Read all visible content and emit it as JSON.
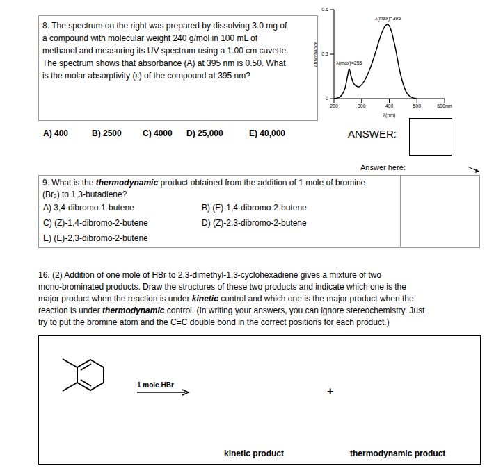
{
  "q8": {
    "lines": [
      "8. The spectrum on the right was prepared by dissolving 3.0 mg of",
      "a compound with molecular weight 240 g/mol in 100 mL of",
      "methanol and measuring its UV spectrum using a 1.00 cm cuvette.",
      "The spectrum shows that absorbance (A) at 395 nm is 0.50. What",
      "is the molar absorptivity (ε) of the compound at 395 nm?"
    ],
    "options": [
      "A) 400",
      "B) 2500",
      "C) 4000",
      "D) 25,000",
      "E) 40,000"
    ],
    "answer_label": "ANSWER:"
  },
  "chart_data": {
    "type": "line",
    "x": [
      200,
      220,
      240,
      250,
      255,
      262,
      272,
      290,
      310,
      330,
      350,
      370,
      385,
      395,
      405,
      420,
      440,
      460,
      480,
      500
    ],
    "values": [
      0.0,
      0.01,
      0.07,
      0.16,
      0.2,
      0.15,
      0.1,
      0.08,
      0.12,
      0.2,
      0.31,
      0.43,
      0.49,
      0.5,
      0.47,
      0.36,
      0.17,
      0.05,
      0.01,
      0.0
    ],
    "color": "#000000",
    "xlim": [
      200,
      600
    ],
    "xticks": [
      200,
      300,
      400,
      500,
      {
        "value": 600,
        "label": "600nm"
      }
    ],
    "ylim": [
      0,
      0.6
    ],
    "yticks": [
      0,
      0.3,
      0.6
    ],
    "x_label": "λ(nm)",
    "y_label": "absorbance",
    "annotations": [
      {
        "text": "λ(max)=395",
        "x": 395,
        "y": 0.5
      },
      {
        "text": "λ(max)=255",
        "x": 255,
        "y": 0.2
      }
    ],
    "grid": false
  },
  "answer_here": "Answer here:",
  "q9": {
    "lines": [
      [
        "9. What is the ",
        {
          "text": "thermodynamic",
          "bold": true
        },
        " product obtained from the addition of 1 mole of bromine"
      ],
      "(Br₂) to 1,3-butadiene?"
    ],
    "options": [
      "A) 3,4-dibromo-1-butene",
      "B) (E)-1,4-dibromo-2-butene",
      "C) (Z)-1,4-dibromo-2-butene",
      "D) (Z)-2,3-dibromo-2-butene",
      "E) (E)-2,3-dibromo-2-butene"
    ]
  },
  "q16": {
    "lines": [
      "16. (2) Addition of one mole of HBr to 2,3-dimethyl-1,3-cyclohexadiene gives a mixture of two",
      "mono-brominated products. Draw the structures of these two products and indicate which one is the",
      [
        "major product when the reaction is under ",
        {
          "text": "kinetic",
          "bold": true
        },
        " control and which one is the major product when the"
      ],
      [
        "reaction is under ",
        {
          "text": "thermodynamic",
          "bold": true
        },
        " control. (In writing your answers, you can ignore stereochemistry. Just"
      ],
      "try to put the bromine atom and the C=C double bond in the correct positions for each product.)"
    ],
    "reagent": "1 mole HBr",
    "plus": "+",
    "kinetic_label": "kinetic product",
    "thermo_label": "thermodynamic product"
  }
}
